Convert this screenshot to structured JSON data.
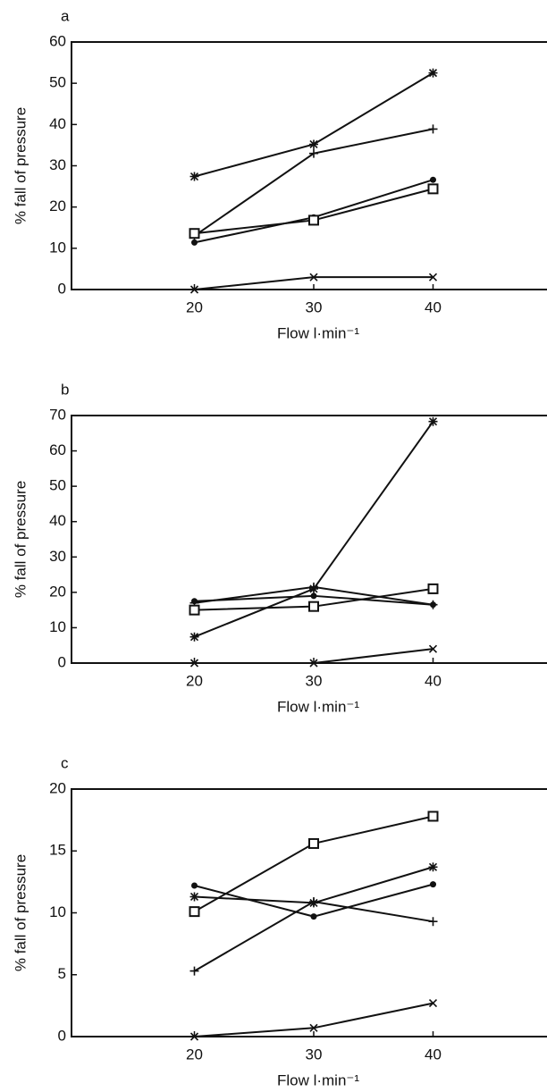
{
  "chart_data": [
    {
      "type": "line",
      "panel": "a",
      "ylabel": "% fall of pressure",
      "xlabel": "Flow l·min⁻¹",
      "x": [
        20,
        30,
        40
      ],
      "xlim": [
        10,
        50
      ],
      "xticks": [
        20,
        30,
        40
      ],
      "ylim": [
        0,
        60
      ],
      "yticks": [
        0,
        10,
        20,
        30,
        40,
        50,
        60
      ],
      "series": [
        {
          "marker": "star",
          "color": "#111111",
          "values": [
            27.4,
            35.2,
            52.5
          ]
        },
        {
          "marker": "plus",
          "color": "#111111",
          "values": [
            13,
            33,
            38.9
          ]
        },
        {
          "marker": "dot",
          "color": "#111111",
          "values": [
            11.4,
            17.5,
            26.6
          ]
        },
        {
          "marker": "square",
          "color": "#111111",
          "values": [
            13.6,
            16.8,
            24.4
          ]
        },
        {
          "marker": "x",
          "color": "#111111",
          "values": [
            0,
            3,
            3
          ]
        }
      ]
    },
    {
      "type": "line",
      "panel": "b",
      "ylabel": "% fall of pressure",
      "xlabel": "Flow l·min⁻¹",
      "x": [
        20,
        30,
        40
      ],
      "xlim": [
        10,
        50
      ],
      "xticks": [
        20,
        30,
        40
      ],
      "ylim": [
        0,
        70
      ],
      "yticks": [
        0,
        10,
        20,
        30,
        40,
        50,
        60,
        70
      ],
      "series": [
        {
          "marker": "star",
          "color": "#111111",
          "values": [
            7.4,
            21,
            68.3
          ]
        },
        {
          "marker": "plus",
          "color": "#111111",
          "values": [
            17,
            21.5,
            16.5
          ]
        },
        {
          "marker": "dot",
          "color": "#111111",
          "values": [
            17.5,
            19,
            16.5
          ]
        },
        {
          "marker": "square",
          "color": "#111111",
          "values": [
            15,
            16,
            21
          ]
        },
        {
          "marker": "x",
          "color": "#111111",
          "values": [
            0,
            0,
            4
          ]
        }
      ]
    },
    {
      "type": "line",
      "panel": "c",
      "ylabel": "% fall of pressure",
      "xlabel": "Flow l·min⁻¹",
      "x": [
        20,
        30,
        40
      ],
      "xlim": [
        10,
        50
      ],
      "xticks": [
        20,
        30,
        40
      ],
      "ylim": [
        0,
        20
      ],
      "yticks": [
        0,
        5,
        10,
        15,
        20
      ],
      "series": [
        {
          "marker": "square",
          "color": "#111111",
          "values": [
            10.1,
            15.6,
            17.8
          ]
        },
        {
          "marker": "star",
          "color": "#111111",
          "values": [
            11.3,
            10.8,
            13.7
          ]
        },
        {
          "marker": "dot",
          "color": "#111111",
          "values": [
            12.2,
            9.7,
            12.3
          ]
        },
        {
          "marker": "plus",
          "color": "#111111",
          "values": [
            5.3,
            10.9,
            9.3
          ]
        },
        {
          "marker": "x",
          "color": "#111111",
          "values": [
            0,
            0.7,
            2.7
          ]
        }
      ]
    }
  ]
}
